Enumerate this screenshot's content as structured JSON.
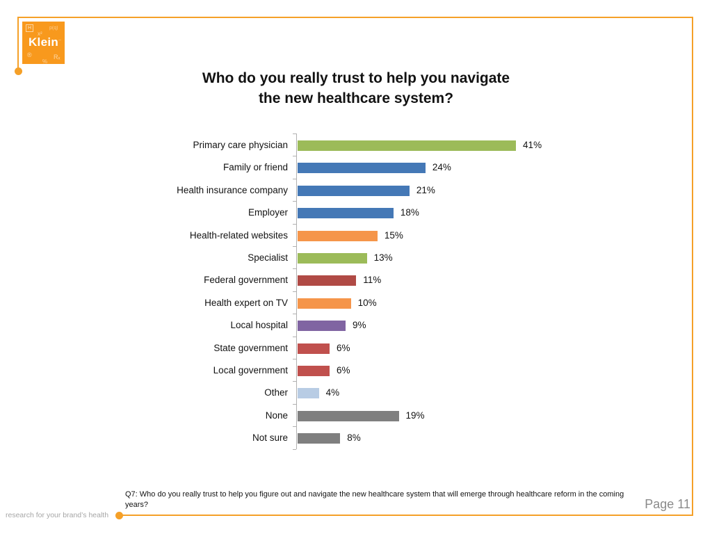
{
  "slide": {
    "title_line1": "Who do you really trust to help you navigate",
    "title_line2": "the new healthcare system?",
    "footnote": "Q7: Who do you really trust to help you figure out and navigate the new healthcare system that will emerge through healthcare reform in the coming years?",
    "page_label": "Page 11",
    "tagline": "research for your brand’s health"
  },
  "logo": {
    "name": "Klein",
    "decor": {
      "h": "H",
      "x2": "x²",
      "pq": "p(q)",
      "tilde": "~",
      "reg": "®",
      "r": "Rₓ",
      "pct": "%"
    }
  },
  "colors": {
    "accent_orange": "#F5A028",
    "logo_orange": "#F8991D",
    "axis_gray": "#b0b0b0",
    "page_gray": "#8a8a8a",
    "text_black": "#121212"
  },
  "chart_data": {
    "type": "bar",
    "orientation": "horizontal",
    "title": "Who do you really trust to help you navigate the new healthcare system?",
    "unit": "%",
    "xlim": [
      0,
      45
    ],
    "grid": false,
    "legend": false,
    "value_label_position": "right-of-bar",
    "categories": [
      "Primary care physician",
      "Family or friend",
      "Health insurance company",
      "Employer",
      "Health-related websites",
      "Specialist",
      "Federal government",
      "Health expert on TV",
      "Local hospital",
      "State government",
      "Local government",
      "Other",
      "None",
      "Not sure"
    ],
    "values": [
      41,
      24,
      21,
      18,
      15,
      13,
      11,
      10,
      9,
      6,
      6,
      4,
      19,
      8
    ],
    "value_labels": [
      "41%",
      "24%",
      "21%",
      "18%",
      "15%",
      "13%",
      "11%",
      "10%",
      "9%",
      "6%",
      "6%",
      "4%",
      "19%",
      "8%"
    ],
    "bar_colors": [
      "#9CBB59",
      "#4478B6",
      "#4478B6",
      "#4478B6",
      "#F5954A",
      "#9CBB59",
      "#B04A45",
      "#F5954A",
      "#8064A2",
      "#C0504D",
      "#C0504D",
      "#B8CCE4",
      "#7F7F7F",
      "#7F7F7F"
    ]
  }
}
